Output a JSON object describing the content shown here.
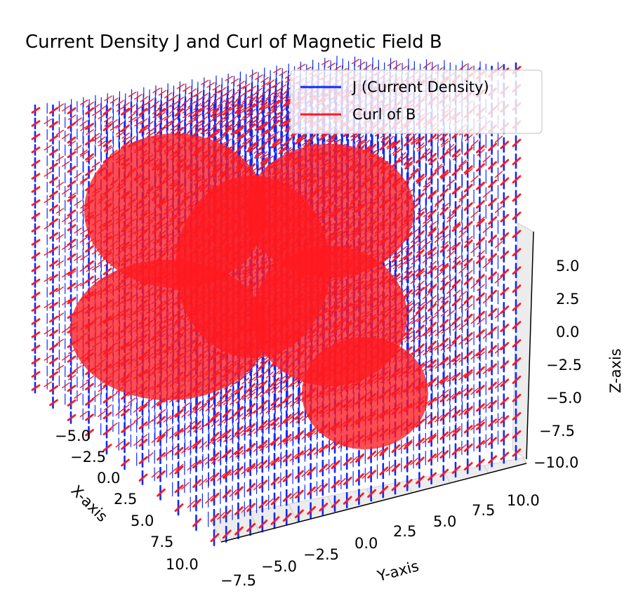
{
  "chart_data": {
    "type": "quiver3d",
    "title": "Current Density J and Curl of Magnetic Field B",
    "xlabel": "X-axis",
    "ylabel": "Y-axis",
    "zlabel": "Z-axis",
    "xlim": [
      -10,
      10
    ],
    "ylim": [
      -10,
      10
    ],
    "zlim": [
      -10,
      10
    ],
    "x_ticks": [
      "−5.0",
      "−2.5",
      "0.0",
      "2.5",
      "5.0",
      "7.5",
      "10.0"
    ],
    "y_ticks": [
      "−7.5",
      "−5.0",
      "−2.5",
      "0.0",
      "2.5",
      "5.0",
      "7.5",
      "10.0"
    ],
    "z_ticks": [
      "5.0",
      "2.5",
      "0.0",
      "−2.5",
      "−5.0",
      "−7.5",
      "−10.0"
    ],
    "grid": true,
    "legend_position": "top-right",
    "series": [
      {
        "name": "J (Current Density)",
        "color": "#0a2bff"
      },
      {
        "name": "Curl of B",
        "color": "#ff1a1f"
      }
    ]
  }
}
